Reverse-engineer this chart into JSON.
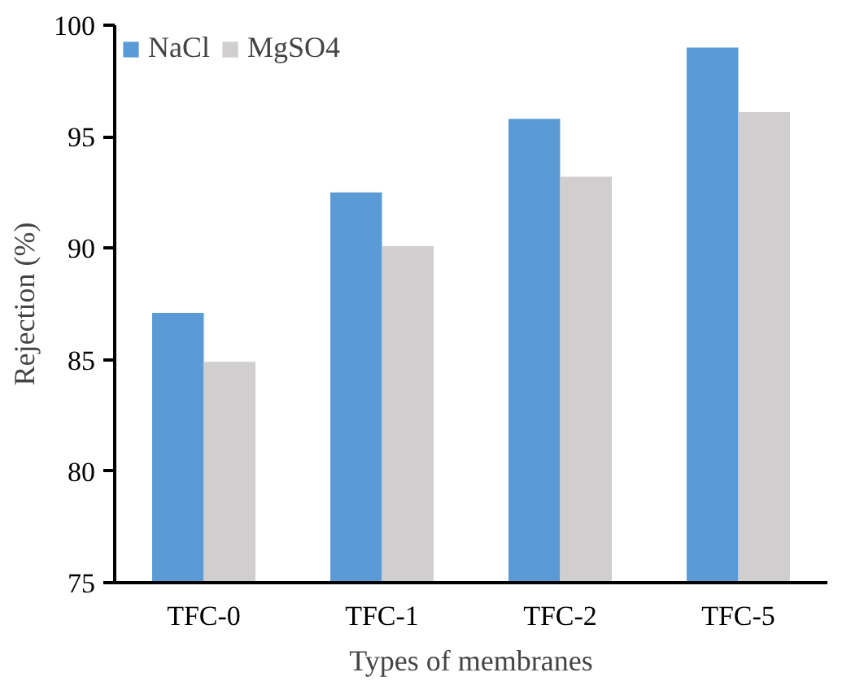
{
  "chart_data": {
    "type": "bar",
    "xlabel": "Types of membranes",
    "ylabel": "Rejection (%)",
    "categories": [
      "TFC-0",
      "TFC-1",
      "TFC-2",
      "TFC-5"
    ],
    "series": [
      {
        "name": "NaCl",
        "color": "#5b9bd5",
        "values": [
          87.1,
          92.5,
          95.8,
          99.0
        ]
      },
      {
        "name": "MgSO4",
        "color": "#d0cece",
        "values": [
          84.9,
          90.1,
          93.2,
          96.1
        ]
      }
    ],
    "ylim": [
      75,
      100
    ],
    "yticks": [
      75,
      80,
      85,
      90,
      95,
      100
    ],
    "grid": false,
    "legend": "top left"
  }
}
